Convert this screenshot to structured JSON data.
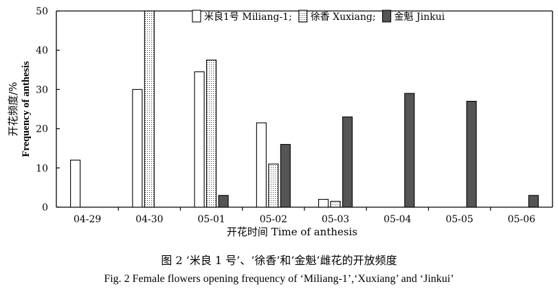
{
  "chart_data": {
    "type": "bar",
    "categories": [
      "04-29",
      "04-30",
      "05-01",
      "05-02",
      "05-03",
      "05-04",
      "05-05",
      "05-06"
    ],
    "series": [
      {
        "name": "米良1号 Miliang-1;",
        "values": [
          12,
          30,
          34.5,
          21.5,
          2,
          0,
          0,
          0
        ],
        "pattern": "open",
        "color": "#ffffff"
      },
      {
        "name": "徐香 Xuxiang;",
        "values": [
          0,
          50,
          37.5,
          11,
          1.5,
          0,
          0,
          0
        ],
        "pattern": "dotted",
        "color": "#ffffff"
      },
      {
        "name": "金魁 Jinkui",
        "values": [
          0,
          0,
          3,
          16,
          23,
          29,
          27,
          3
        ],
        "pattern": "dark",
        "color": "#555555"
      }
    ],
    "title": "",
    "xlabel": "开花时间 Time of anthesis",
    "ylabel_cn": "开花频度/%",
    "ylabel_en": "Frequency of anthesis",
    "ylim": [
      0,
      50
    ],
    "yticks": [
      0,
      10,
      20,
      30,
      40,
      50
    ],
    "grid": false,
    "legend_position": "top-right"
  },
  "caption": {
    "cn": "图 2  ‘米良 1 号’、‘徐香’和‘金魁’雌花的开放频度",
    "en": "Fig. 2   Female flowers opening frequency of ‘Miliang-1’,‘Xuxiang’ and ‘Jinkui’"
  }
}
